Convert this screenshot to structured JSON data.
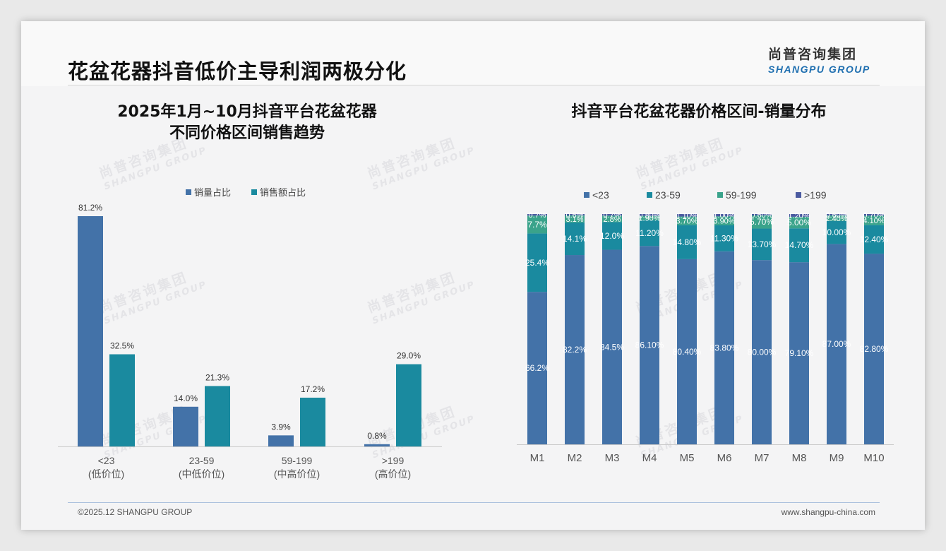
{
  "page": {
    "title": "花盆花器抖音低价主导利润两极分化",
    "logo_cn": "尚普咨询集团",
    "logo_en": "SHANGPU GROUP",
    "watermark_cn": "尚普咨询集团",
    "watermark_en": "SHANGPU GROUP",
    "footer_left": "©2025.12 SHANGPU GROUP",
    "footer_right": "www.shangpu-china.com"
  },
  "colors": {
    "series_a": "#4372a8",
    "series_b": "#1a8a9f",
    "series_c": "#3aa38b",
    "series_d": "#4a5aa0"
  },
  "chart_data": [
    {
      "type": "bar",
      "title": "2025年1月~10月抖音平台花盆花器\n不同价格区间销售趋势",
      "title_lines": [
        "2025年1月~10月抖音平台花盆花器",
        "不同价格区间销售趋势"
      ],
      "categories": [
        "<23",
        "23-59",
        "59-199",
        ">199"
      ],
      "category_sublabels": [
        "(低价位)",
        "(中低价位)",
        "(中高价位)",
        "(高价位)"
      ],
      "series": [
        {
          "name": "销量占比",
          "values": [
            81.2,
            14.0,
            3.9,
            0.8
          ],
          "labels": [
            "81.2%",
            "14.0%",
            "3.9%",
            "0.8%"
          ]
        },
        {
          "name": "销售额占比",
          "values": [
            32.5,
            21.3,
            17.2,
            29.0
          ],
          "labels": [
            "32.5%",
            "21.3%",
            "17.2%",
            "29.0%"
          ]
        }
      ],
      "ylim": [
        0,
        100
      ],
      "legend": "top-center",
      "grid": false
    },
    {
      "type": "bar",
      "stacked": true,
      "normalized": true,
      "title": "抖音平台花盆花器价格区间-销量分布",
      "categories": [
        "M1",
        "M2",
        "M3",
        "M4",
        "M5",
        "M6",
        "M7",
        "M8",
        "M9",
        "M10"
      ],
      "series": [
        {
          "name": "<23",
          "values": [
            66.2,
            82.2,
            84.5,
            86.1,
            80.4,
            83.8,
            80.0,
            79.1,
            87.0,
            82.8
          ],
          "labels": [
            "66.2%",
            "82.2%",
            "84.5%",
            "86.10%",
            "80.40%",
            "83.80%",
            "80.00%",
            "79.10%",
            "87.00%",
            "82.80%"
          ]
        },
        {
          "name": "23-59",
          "values": [
            25.4,
            14.1,
            12.0,
            11.2,
            14.8,
            11.3,
            13.7,
            14.7,
            10.0,
            12.4
          ],
          "labels": [
            "25.4%",
            "14.1%",
            "12.0%",
            "11.20%",
            "14.80%",
            "11.30%",
            "13.70%",
            "14.70%",
            "10.00%",
            "12.40%"
          ]
        },
        {
          "name": "59-199",
          "values": [
            7.7,
            3.1,
            2.8,
            1.9,
            3.7,
            3.9,
            5.7,
            5.0,
            2.4,
            4.1
          ],
          "labels": [
            "7.7%",
            "3.1%",
            "2.8%",
            "1.90%",
            "3.70%",
            "3.90%",
            "5.70%",
            "5.00%",
            "2.40%",
            "4.10%"
          ]
        },
        {
          "name": ">199",
          "values": [
            0.7,
            0.6,
            0.7,
            0.8,
            1.1,
            1.0,
            0.6,
            1.2,
            0.6,
            0.7
          ],
          "labels": [
            "0.7%",
            "0.6%",
            "0.7%",
            "0.80%",
            "1.10%",
            "1.00%",
            "0.60%",
            "1.20%",
            "0.60%",
            "0.70%"
          ]
        }
      ],
      "ylim": [
        0,
        100
      ],
      "legend": "top-center",
      "grid": false
    }
  ]
}
